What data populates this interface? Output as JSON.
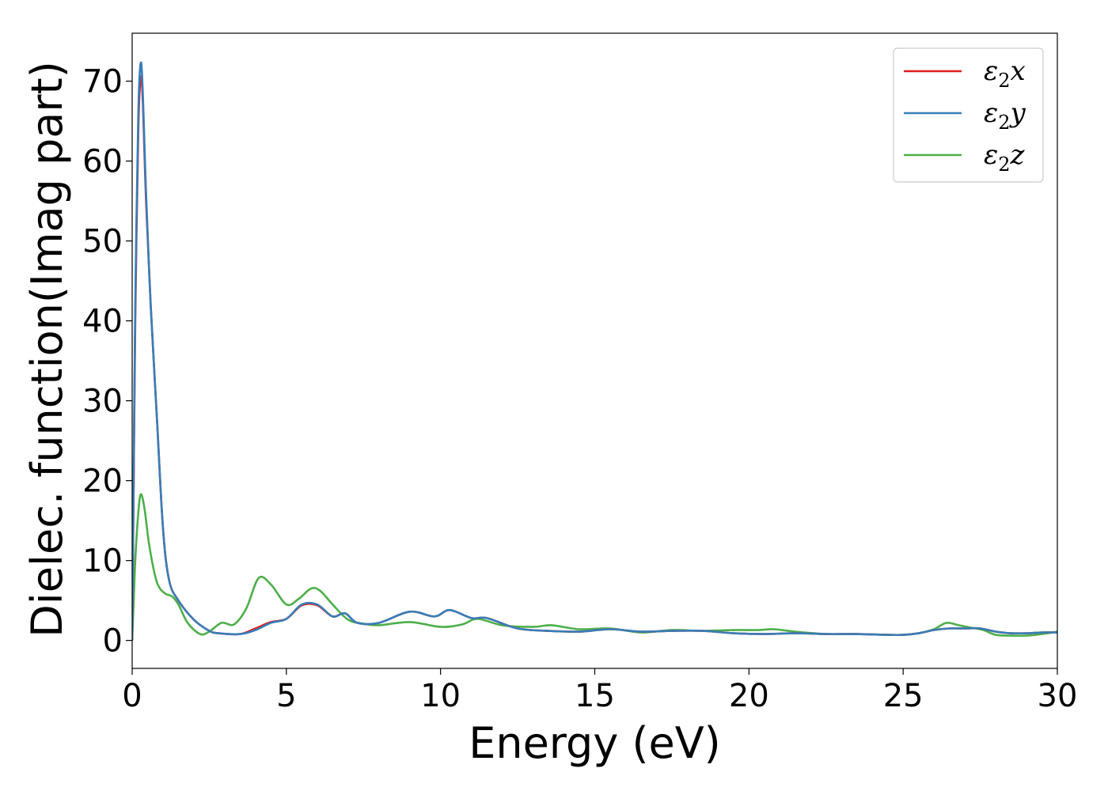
{
  "chart_data": {
    "type": "line",
    "title": "",
    "xlabel": "Energy (eV)",
    "ylabel": "Dielec. function(Imag part)",
    "xlim": [
      0,
      30
    ],
    "ylim": [
      -3.5,
      76
    ],
    "xticks": [
      0,
      5,
      10,
      15,
      20,
      25,
      30
    ],
    "yticks": [
      0,
      10,
      20,
      30,
      40,
      50,
      60,
      70
    ],
    "grid": false,
    "legend_position": "top-right",
    "series": [
      {
        "name": "ε₂x",
        "legend_main": "ε",
        "legend_sub": "2",
        "legend_tail": "x",
        "color": "#e41a1c",
        "x": [
          0,
          0.05,
          0.1,
          0.2,
          0.28,
          0.35,
          0.45,
          0.6,
          0.8,
          1.0,
          1.2,
          1.5,
          2.0,
          2.5,
          2.8,
          3.5,
          4.0,
          4.5,
          5.0,
          5.5,
          6.0,
          6.5,
          6.9,
          7.3,
          8.0,
          9.0,
          9.8,
          10.3,
          11.0,
          11.5,
          12.5,
          13.5,
          14.5,
          15.5,
          16.5,
          17.5,
          18.5,
          19.5,
          20.5,
          21.5,
          22.5,
          23.5,
          24.5,
          25.0,
          25.5,
          26.0,
          26.5,
          27.0,
          27.5,
          28.0,
          28.5,
          29.0,
          29.5,
          30.0
        ],
        "y": [
          0,
          20,
          40,
          64,
          70.5,
          67,
          55,
          42,
          28,
          14,
          7.5,
          5,
          2.6,
          1.2,
          0.9,
          0.8,
          1.5,
          2.3,
          2.7,
          4.4,
          4.4,
          3.0,
          3.4,
          2.2,
          2.2,
          3.6,
          3.0,
          3.8,
          2.8,
          2.8,
          1.5,
          1.2,
          1.1,
          1.4,
          1.1,
          1.2,
          1.2,
          0.9,
          0.8,
          0.9,
          0.8,
          0.8,
          0.7,
          0.7,
          0.9,
          1.3,
          1.5,
          1.5,
          1.5,
          1.1,
          0.9,
          0.9,
          1.0,
          1.0
        ]
      },
      {
        "name": "ε₂y",
        "legend_main": "ε",
        "legend_sub": "2",
        "legend_tail": "y",
        "color": "#377eb8",
        "x": [
          0,
          0.05,
          0.1,
          0.2,
          0.28,
          0.35,
          0.45,
          0.6,
          0.8,
          1.0,
          1.2,
          1.5,
          2.0,
          2.5,
          2.8,
          3.5,
          4.0,
          4.5,
          5.0,
          5.5,
          6.0,
          6.5,
          6.9,
          7.3,
          8.0,
          9.0,
          9.8,
          10.3,
          11.0,
          11.5,
          12.5,
          13.5,
          14.5,
          15.5,
          16.5,
          17.5,
          18.5,
          19.5,
          20.5,
          21.5,
          22.5,
          23.5,
          24.5,
          25.0,
          25.5,
          26.0,
          26.5,
          27.0,
          27.5,
          28.0,
          28.5,
          29.0,
          29.5,
          30.0
        ],
        "y": [
          0,
          21,
          42,
          66,
          72.3,
          68,
          56,
          42,
          28,
          14,
          7.5,
          5,
          2.6,
          1.2,
          0.9,
          0.8,
          1.3,
          2.2,
          2.7,
          4.5,
          4.5,
          3.0,
          3.4,
          2.2,
          2.2,
          3.6,
          3.0,
          3.8,
          2.8,
          2.8,
          1.5,
          1.2,
          1.1,
          1.4,
          1.1,
          1.2,
          1.2,
          0.9,
          0.8,
          0.9,
          0.8,
          0.8,
          0.7,
          0.7,
          0.9,
          1.3,
          1.5,
          1.5,
          1.5,
          1.1,
          0.9,
          0.9,
          1.0,
          1.0
        ]
      },
      {
        "name": "ε₂z",
        "legend_main": "ε",
        "legend_sub": "2",
        "legend_tail": "z",
        "color": "#4daf4a",
        "x": [
          0,
          0.05,
          0.1,
          0.2,
          0.28,
          0.4,
          0.55,
          0.75,
          0.9,
          1.1,
          1.3,
          1.5,
          1.8,
          2.2,
          2.5,
          2.9,
          3.3,
          3.7,
          4.1,
          4.5,
          5.0,
          5.4,
          5.8,
          6.1,
          6.5,
          7.0,
          7.5,
          8.0,
          9.0,
          10.0,
          10.7,
          11.2,
          12.0,
          13.0,
          13.6,
          14.5,
          15.5,
          16.5,
          17.5,
          18.5,
          19.5,
          20.3,
          20.8,
          21.5,
          22.5,
          23.5,
          24.5,
          25.0,
          25.5,
          26.0,
          26.4,
          26.8,
          27.2,
          27.6,
          28.0,
          28.5,
          29.0,
          29.5,
          30.0
        ],
        "y": [
          0,
          5,
          10,
          16,
          18.3,
          16.5,
          12,
          8,
          6.5,
          5.8,
          5.5,
          4.5,
          2.2,
          0.8,
          1.1,
          2.2,
          2.0,
          4.0,
          7.8,
          7.0,
          4.5,
          5.2,
          6.5,
          6.2,
          4.5,
          2.6,
          2.1,
          1.9,
          2.3,
          1.7,
          2.0,
          2.7,
          1.9,
          1.7,
          1.9,
          1.4,
          1.5,
          1.0,
          1.3,
          1.2,
          1.3,
          1.3,
          1.4,
          1.1,
          0.8,
          0.8,
          0.7,
          0.7,
          0.9,
          1.4,
          2.2,
          1.9,
          1.6,
          1.3,
          0.7,
          0.6,
          0.6,
          0.8,
          1.1
        ]
      }
    ]
  }
}
